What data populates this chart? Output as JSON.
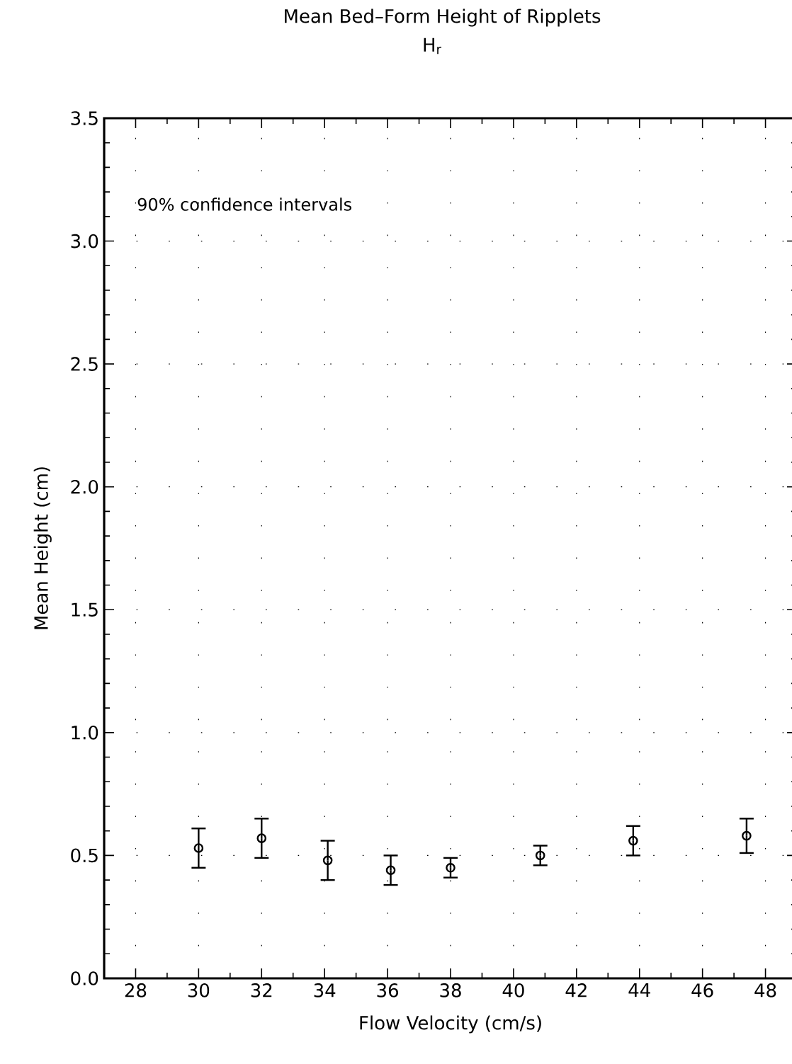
{
  "chart_data": {
    "type": "scatter",
    "title": "Mean Bed–Form Height of Ripplets",
    "subtitle": "H$_{r}$",
    "xlabel": "Flow Velocity (cm/s)",
    "ylabel": "Mean Height (cm)",
    "annotations": [
      "90% confidence intervals"
    ],
    "x": [
      30.0,
      32.0,
      34.1,
      36.1,
      38.0,
      40.85,
      43.8,
      47.4
    ],
    "values": [
      0.53,
      0.57,
      0.48,
      0.44,
      0.45,
      0.5,
      0.56,
      0.58
    ],
    "errors": [
      [
        0.45,
        0.61
      ],
      [
        0.49,
        0.65
      ],
      [
        0.4,
        0.56
      ],
      [
        0.38,
        0.5
      ],
      [
        0.41,
        0.49
      ],
      [
        0.46,
        0.54
      ],
      [
        0.5,
        0.62
      ],
      [
        0.51,
        0.65
      ]
    ],
    "color": "#000000",
    "marker": "circle",
    "grid": true,
    "xlim": [
      27,
      49
    ],
    "xticks": [
      28,
      30,
      32,
      34,
      36,
      38,
      40,
      42,
      44,
      46,
      48
    ],
    "ylim": [
      0,
      3.5
    ],
    "yticks": [
      {
        "value": 0,
        "label": "0.0"
      },
      {
        "value": 0.5,
        "label": "0.5"
      },
      {
        "value": 1,
        "label": "1.0"
      },
      {
        "value": 1.5,
        "label": "1.5"
      },
      {
        "value": 2,
        "label": "2.0"
      },
      {
        "value": 2.5,
        "label": "2.5"
      },
      {
        "value": 3,
        "label": "3.0"
      },
      {
        "value": 3.5,
        "label": "3.5"
      }
    ]
  }
}
